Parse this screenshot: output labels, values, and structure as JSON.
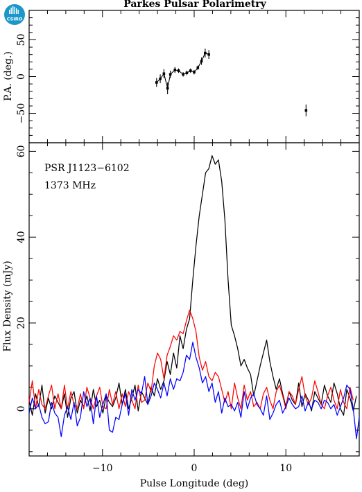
{
  "logo": {
    "text": "CSIRO",
    "color": "#1b97c9"
  },
  "chart_data": [
    {
      "type": "scatter",
      "title": "Parkes Pulsar Polarimetry",
      "ylabel": "P.A. (deg.)",
      "xlim": [
        -18,
        18
      ],
      "ylim": [
        -90,
        90
      ],
      "yticks": [
        50,
        0,
        -50
      ],
      "ytick_labels": [
        "50",
        "0",
        "−50"
      ],
      "series": [
        {
          "x": [
            -4.1,
            -3.7,
            -3.3,
            -2.9,
            -2.6,
            -2.1,
            -1.7,
            -1.2,
            -0.8,
            -0.4,
            0.0,
            0.4,
            0.8,
            1.2,
            1.6
          ],
          "y": [
            -8,
            -3,
            4,
            -16,
            3,
            9,
            8,
            3,
            5,
            8,
            6,
            12,
            21,
            32,
            30
          ],
          "err": [
            6,
            6,
            6,
            8,
            5,
            4,
            3,
            3,
            3,
            3,
            3,
            3,
            5,
            6,
            6
          ]
        },
        {
          "x": [
            12.2
          ],
          "y": [
            -46
          ],
          "err": [
            8
          ]
        }
      ]
    },
    {
      "type": "line",
      "xlabel": "Pulse Longitude (deg)",
      "ylabel": "Flux Density (mJy)",
      "xlim": [
        -18,
        18
      ],
      "ylim": [
        -11,
        62
      ],
      "xticks": [
        -10,
        0,
        10
      ],
      "xtick_labels": [
        "−10",
        "0",
        "10"
      ],
      "yticks": [
        0,
        20,
        40,
        60
      ],
      "ytick_labels": [
        "0",
        "20",
        "40",
        "60"
      ],
      "annotations": [
        "PSR J1123−6102",
        "1373 MHz"
      ],
      "x_start": -18.0,
      "x_step": 0.35,
      "series": [
        {
          "color": "#000000",
          "values": [
            2.0,
            -1.5,
            3.5,
            0.5,
            5.5,
            -1.0,
            2.5,
            0.0,
            3.0,
            1.5,
            0.0,
            3.5,
            -2.0,
            2.5,
            4.0,
            -1.0,
            2.0,
            0.5,
            3.0,
            -0.5,
            4.5,
            0.5,
            2.0,
            -1.0,
            3.0,
            1.5,
            0.5,
            2.5,
            6.0,
            1.0,
            4.5,
            0.0,
            2.5,
            5.5,
            -0.5,
            4.0,
            2.5,
            1.0,
            5.0,
            3.0,
            7.0,
            4.5,
            6.5,
            11.0,
            8.0,
            13.0,
            9.5,
            17.0,
            14.0,
            18.5,
            21.0,
            30.0,
            38.0,
            45.0,
            50.0,
            55.0,
            56.0,
            59.0,
            57.0,
            58.0,
            53.0,
            44.0,
            30.0,
            19.5,
            17.0,
            14.0,
            10.0,
            11.5,
            9.5,
            8.0,
            3.0,
            6.5,
            10.0,
            13.0,
            16.0,
            11.0,
            7.5,
            4.5,
            7.0,
            3.5,
            0.5,
            4.0,
            2.0,
            1.0,
            6.0,
            0.5,
            3.5,
            2.0,
            -0.5,
            4.0,
            2.5,
            1.0,
            5.5,
            3.0,
            1.5,
            6.0,
            3.5,
            0.0,
            -1.5,
            4.5,
            2.5,
            -0.5,
            3.0
          ]
        },
        {
          "color": "#ff0000",
          "values": [
            1.5,
            6.5,
            0.0,
            4.5,
            1.0,
            0.0,
            3.0,
            5.5,
            0.0,
            3.5,
            0.0,
            5.5,
            0.0,
            4.0,
            1.0,
            0.0,
            3.5,
            0.0,
            5.0,
            2.5,
            0.0,
            3.0,
            5.0,
            0.5,
            0.0,
            4.5,
            1.0,
            4.0,
            0.0,
            3.5,
            0.5,
            4.0,
            2.0,
            0.0,
            5.5,
            1.5,
            2.0,
            6.0,
            4.0,
            10.0,
            13.0,
            11.5,
            7.0,
            12.5,
            14.5,
            17.0,
            16.0,
            18.0,
            17.5,
            20.5,
            23.0,
            21.0,
            18.0,
            12.0,
            9.0,
            11.0,
            7.5,
            6.5,
            8.5,
            7.5,
            4.5,
            1.5,
            4.0,
            0.0,
            6.0,
            2.5,
            0.0,
            5.5,
            2.0,
            4.0,
            0.5,
            1.5,
            0.0,
            3.5,
            5.0,
            2.0,
            0.0,
            4.0,
            5.5,
            3.0,
            0.0,
            4.0,
            3.0,
            1.0,
            4.5,
            7.5,
            3.0,
            1.0,
            2.5,
            6.5,
            4.0,
            1.0,
            0.0,
            3.0,
            5.0,
            2.0,
            0.0,
            4.5,
            1.5,
            0.0,
            5.0,
            2.0
          ]
        },
        {
          "color": "#0000ff",
          "values": [
            -1.0,
            2.5,
            0.0,
            1.0,
            -2.0,
            -3.5,
            -3.0,
            1.5,
            -1.0,
            -2.0,
            -6.5,
            -1.5,
            0.5,
            -2.5,
            1.5,
            -4.0,
            -2.0,
            4.0,
            0.5,
            2.5,
            -3.5,
            3.0,
            -2.0,
            1.0,
            3.5,
            -5.0,
            -5.5,
            -2.0,
            -2.5,
            1.0,
            3.5,
            -1.5,
            4.5,
            2.0,
            4.5,
            3.5,
            7.5,
            1.0,
            3.0,
            6.0,
            4.5,
            2.5,
            6.0,
            3.0,
            7.0,
            4.5,
            7.0,
            6.5,
            8.5,
            12.5,
            11.5,
            15.5,
            12.0,
            9.5,
            6.0,
            7.5,
            4.0,
            6.0,
            1.5,
            4.0,
            -1.0,
            2.5,
            0.5,
            1.0,
            -0.5,
            1.5,
            -2.0,
            4.0,
            0.0,
            2.5,
            3.5,
            1.0,
            0.0,
            -1.5,
            3.0,
            -2.5,
            -1.0,
            1.0,
            2.0,
            -1.0,
            0.5,
            2.5,
            1.0,
            0.0,
            0.5,
            3.0,
            -0.5,
            1.5,
            0.0,
            2.0,
            1.5,
            0.0,
            2.0,
            1.5,
            0.0,
            1.0,
            -1.5,
            0.5,
            2.5,
            5.5,
            4.5,
            0.0,
            -7.0,
            -2.0
          ]
        }
      ]
    }
  ]
}
